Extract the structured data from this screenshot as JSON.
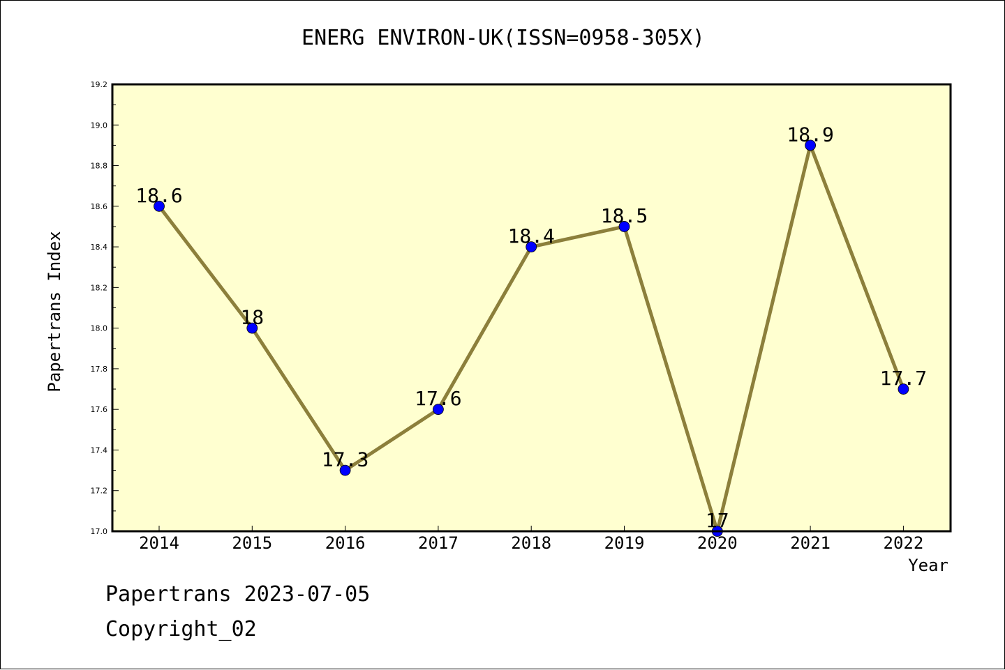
{
  "header": {
    "title": "ENERG ENVIRON-UK(ISSN=0958-305X)"
  },
  "axes": {
    "ylabel": "Papertrans Index",
    "xlabel": "Year"
  },
  "footer": {
    "line1": "Papertrans 2023-07-05",
    "line2": "Copyright_02"
  },
  "colors": {
    "plot_background": "#ffffd0",
    "line": "#8c7f3b",
    "marker": "#0000ff"
  },
  "chart_data": {
    "type": "line",
    "title": "ENERG ENVIRON-UK(ISSN=0958-305X)",
    "xlabel": "Year",
    "ylabel": "Papertrans Index",
    "ylim": [
      17.0,
      19.2
    ],
    "y_ticks": [
      "17.0",
      "17.2",
      "17.4",
      "17.6",
      "17.8",
      "18.0",
      "18.2",
      "18.4",
      "18.6",
      "18.8",
      "19.0",
      "19.2"
    ],
    "grid": false,
    "categories": [
      "2014",
      "2015",
      "2016",
      "2017",
      "2018",
      "2019",
      "2020",
      "2021",
      "2022"
    ],
    "values": [
      18.6,
      18.0,
      17.3,
      17.6,
      18.4,
      18.5,
      17.0,
      18.9,
      17.7
    ],
    "data_labels": [
      "18.6",
      "18",
      "17.3",
      "17.6",
      "18.4",
      "18.5",
      "17",
      "18.9",
      "17.7"
    ]
  }
}
